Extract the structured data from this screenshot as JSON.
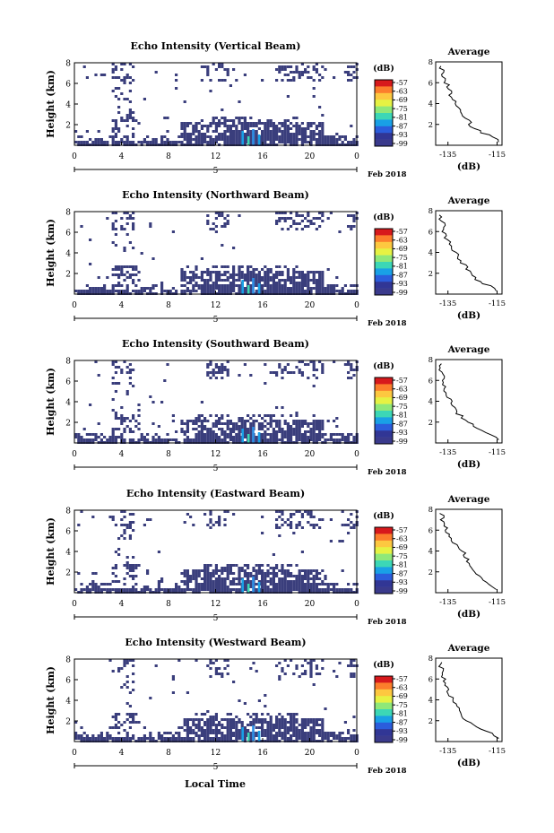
{
  "figure": {
    "date_label": "Feb 2018",
    "x_axis_title": "Local Time",
    "day_label": "5",
    "colorbar_unit": "(dB)",
    "colorbar_ticks": [
      "-57",
      "-63",
      "-69",
      "-75",
      "-81",
      "-87",
      "-93",
      "-99"
    ],
    "colorbar_colors": [
      "#d7191c",
      "#fc7e2c",
      "#fdc840",
      "#e6f243",
      "#8fe879",
      "#3cd7b6",
      "#19a0e6",
      "#2b5ddc",
      "#313695",
      "#3a3a8c"
    ],
    "average_title": "Average",
    "average_xlabel": "(dB)",
    "background_color": "#3a3e7c"
  },
  "chart_data": [
    {
      "type": "heatmap",
      "title": "Echo Intensity (Vertical Beam)",
      "ylabel": "Height (km)",
      "x_ticks": [
        "0",
        "4",
        "8",
        "12",
        "16",
        "20",
        "0"
      ],
      "y_ticks": [
        "8",
        "6",
        "4",
        "2"
      ],
      "xlim": [
        0,
        24
      ],
      "ylim": [
        0,
        8
      ],
      "profile": {
        "x_ticks": [
          "-135",
          "-115"
        ],
        "y_ticks": [
          "8",
          "6",
          "4",
          "2"
        ],
        "xlim": [
          -140,
          -113
        ],
        "ylim": [
          0,
          8
        ],
        "heights": [
          0.3,
          0.8,
          1.2,
          1.6,
          2.0,
          2.4,
          2.8,
          3.2,
          3.6,
          4.0,
          4.4,
          4.8,
          5.2,
          5.6,
          6.0,
          6.4,
          6.8,
          7.2,
          7.6
        ],
        "values": [
          -114,
          -117,
          -121,
          -124,
          -126,
          -127,
          -129,
          -130,
          -131,
          -132,
          -133,
          -134,
          -134,
          -135,
          -136,
          -136,
          -137,
          -137,
          -138
        ]
      }
    },
    {
      "type": "heatmap",
      "title": "Echo Intensity (Northward Beam)",
      "ylabel": "Height (km)",
      "x_ticks": [
        "0",
        "4",
        "8",
        "12",
        "16",
        "20",
        "0"
      ],
      "y_ticks": [
        "8",
        "6",
        "4",
        "2"
      ],
      "xlim": [
        0,
        24
      ],
      "ylim": [
        0,
        8
      ],
      "profile": {
        "x_ticks": [
          "-135",
          "-115"
        ],
        "y_ticks": [
          "8",
          "6",
          "4",
          "2"
        ],
        "xlim": [
          -140,
          -113
        ],
        "ylim": [
          0,
          8
        ],
        "heights": [
          0.3,
          0.8,
          1.2,
          1.6,
          2.0,
          2.4,
          2.8,
          3.2,
          3.6,
          4.0,
          4.4,
          4.8,
          5.2,
          5.6,
          6.0,
          6.4,
          6.8,
          7.2,
          7.6
        ],
        "values": [
          -115,
          -118,
          -122,
          -124,
          -126,
          -127,
          -128,
          -130,
          -131,
          -132,
          -134,
          -135,
          -135,
          -136,
          -137,
          -137,
          -137,
          -138,
          -138
        ]
      }
    },
    {
      "type": "heatmap",
      "title": "Echo Intensity (Southward Beam)",
      "ylabel": "Height (km)",
      "x_ticks": [
        "0",
        "4",
        "8",
        "12",
        "16",
        "20",
        "0"
      ],
      "y_ticks": [
        "8",
        "6",
        "4",
        "2"
      ],
      "xlim": [
        0,
        24
      ],
      "ylim": [
        0,
        8
      ],
      "profile": {
        "x_ticks": [
          "-135",
          "-115"
        ],
        "y_ticks": [
          "8",
          "6",
          "4",
          "2"
        ],
        "xlim": [
          -140,
          -113
        ],
        "ylim": [
          0,
          8
        ],
        "heights": [
          0.3,
          0.8,
          1.2,
          1.6,
          2.0,
          2.4,
          2.8,
          3.2,
          3.6,
          4.0,
          4.4,
          4.8,
          5.2,
          5.6,
          6.0,
          6.4,
          6.8,
          7.2,
          7.6
        ],
        "values": [
          -114,
          -117,
          -121,
          -124,
          -127,
          -129,
          -131,
          -132,
          -133,
          -134,
          -135,
          -136,
          -136,
          -137,
          -137,
          -137,
          -138,
          -138,
          -138
        ]
      }
    },
    {
      "type": "heatmap",
      "title": "Echo Intensity (Eastward Beam)",
      "ylabel": "Height (km)",
      "x_ticks": [
        "0",
        "4",
        "8",
        "12",
        "16",
        "20",
        "0"
      ],
      "y_ticks": [
        "8",
        "6",
        "4",
        "2"
      ],
      "xlim": [
        0,
        24
      ],
      "ylim": [
        0,
        8
      ],
      "profile": {
        "x_ticks": [
          "-135",
          "-115"
        ],
        "y_ticks": [
          "8",
          "6",
          "4",
          "2"
        ],
        "xlim": [
          -140,
          -113
        ],
        "ylim": [
          0,
          8
        ],
        "heights": [
          0.3,
          0.8,
          1.2,
          1.6,
          2.0,
          2.4,
          2.8,
          3.2,
          3.6,
          4.0,
          4.4,
          4.8,
          5.2,
          5.6,
          6.0,
          6.4,
          6.8,
          7.2,
          7.6
        ],
        "values": [
          -115,
          -118,
          -120,
          -122,
          -124,
          -125,
          -126,
          -127,
          -128,
          -129,
          -131,
          -133,
          -134,
          -135,
          -136,
          -136,
          -137,
          -137,
          -138
        ]
      }
    },
    {
      "type": "heatmap",
      "title": "Echo Intensity (Westward Beam)",
      "ylabel": "Height (km)",
      "x_ticks": [
        "0",
        "4",
        "8",
        "12",
        "16",
        "20",
        "0"
      ],
      "y_ticks": [
        "8",
        "6",
        "4",
        "2"
      ],
      "xlim": [
        0,
        24
      ],
      "ylim": [
        0,
        8
      ],
      "profile": {
        "x_ticks": [
          "-135",
          "-115"
        ],
        "y_ticks": [
          "8",
          "6",
          "4",
          "2"
        ],
        "xlim": [
          -140,
          -113
        ],
        "ylim": [
          0,
          8
        ],
        "heights": [
          0.3,
          0.8,
          1.2,
          1.6,
          2.0,
          2.4,
          2.8,
          3.2,
          3.6,
          4.0,
          4.4,
          4.8,
          5.2,
          5.6,
          6.0,
          6.4,
          6.8,
          7.2,
          7.6
        ],
        "values": [
          -114,
          -117,
          -122,
          -125,
          -127,
          -129,
          -130,
          -131,
          -132,
          -133,
          -134,
          -135,
          -135,
          -136,
          -136,
          -137,
          -137,
          -138,
          -138
        ]
      }
    }
  ]
}
